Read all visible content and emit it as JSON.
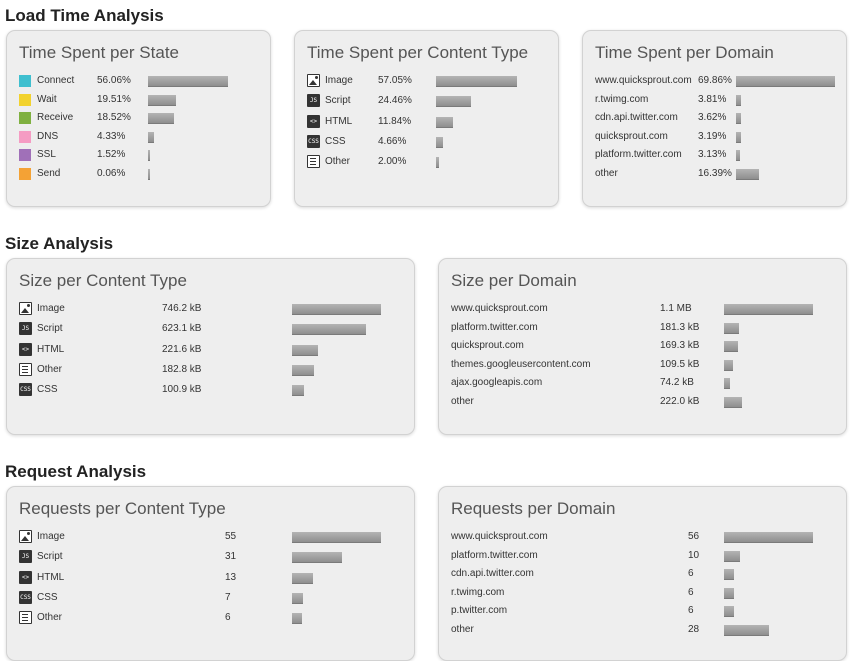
{
  "sections": {
    "load_time": "Load Time Analysis",
    "size": "Size Analysis",
    "request": "Request Analysis"
  },
  "panels": {
    "time_state": {
      "title": "Time Spent per State",
      "rows": [
        {
          "label": "Connect",
          "value": "56.06%",
          "fraction": 0.5606,
          "color": "#3fbfcf"
        },
        {
          "label": "Wait",
          "value": "19.51%",
          "fraction": 0.1951,
          "color": "#f2d22e"
        },
        {
          "label": "Receive",
          "value": "18.52%",
          "fraction": 0.1852,
          "color": "#7fb040"
        },
        {
          "label": "DNS",
          "value": "4.33%",
          "fraction": 0.0433,
          "color": "#f59cc3"
        },
        {
          "label": "SSL",
          "value": "1.52%",
          "fraction": 0.0152,
          "color": "#a070b8"
        },
        {
          "label": "Send",
          "value": "0.06%",
          "fraction": 0.0006,
          "color": "#f4a235"
        }
      ]
    },
    "time_content": {
      "title": "Time Spent per Content Type",
      "rows": [
        {
          "label": "Image",
          "value": "57.05%",
          "fraction": 0.5705,
          "icon": "image-icon"
        },
        {
          "label": "Script",
          "value": "24.46%",
          "fraction": 0.2446,
          "icon": "script-icon"
        },
        {
          "label": "HTML",
          "value": "11.84%",
          "fraction": 0.1184,
          "icon": "html-icon"
        },
        {
          "label": "CSS",
          "value": "4.66%",
          "fraction": 0.0466,
          "icon": "css-icon"
        },
        {
          "label": "Other",
          "value": "2.00%",
          "fraction": 0.02,
          "icon": "document-icon"
        }
      ]
    },
    "time_domain": {
      "title": "Time Spent per Domain",
      "rows": [
        {
          "label": "www.quicksprout.com",
          "value": "69.86%",
          "fraction": 0.6986
        },
        {
          "label": "r.twimg.com",
          "value": "3.81%",
          "fraction": 0.0381
        },
        {
          "label": "cdn.api.twitter.com",
          "value": "3.62%",
          "fraction": 0.0362
        },
        {
          "label": "quicksprout.com",
          "value": "3.19%",
          "fraction": 0.0319
        },
        {
          "label": "platform.twitter.com",
          "value": "3.13%",
          "fraction": 0.0313
        },
        {
          "label": "other",
          "value": "16.39%",
          "fraction": 0.1639
        }
      ]
    },
    "size_content": {
      "title": "Size per Content Type",
      "rows": [
        {
          "label": "Image",
          "value": "746.2 kB",
          "fraction": 1.0,
          "icon": "image-icon"
        },
        {
          "label": "Script",
          "value": "623.1 kB",
          "fraction": 0.835,
          "icon": "script-icon"
        },
        {
          "label": "HTML",
          "value": "221.6 kB",
          "fraction": 0.297,
          "icon": "html-icon"
        },
        {
          "label": "Other",
          "value": "182.8 kB",
          "fraction": 0.245,
          "icon": "document-icon"
        },
        {
          "label": "CSS",
          "value": "100.9 kB",
          "fraction": 0.135,
          "icon": "css-icon"
        }
      ]
    },
    "size_domain": {
      "title": "Size per Domain",
      "rows": [
        {
          "label": "www.quicksprout.com",
          "value": "1.1 MB",
          "fraction": 1.0
        },
        {
          "label": "platform.twitter.com",
          "value": "181.3 kB",
          "fraction": 0.165
        },
        {
          "label": "quicksprout.com",
          "value": "169.3 kB",
          "fraction": 0.154
        },
        {
          "label": "themes.googleusercontent.com",
          "value": "109.5 kB",
          "fraction": 0.1
        },
        {
          "label": "ajax.googleapis.com",
          "value": "74.2 kB",
          "fraction": 0.067
        },
        {
          "label": "other",
          "value": "222.0 kB",
          "fraction": 0.2
        }
      ]
    },
    "req_content": {
      "title": "Requests per Content Type",
      "rows": [
        {
          "label": "Image",
          "value": "55",
          "fraction": 1.0,
          "icon": "image-icon"
        },
        {
          "label": "Script",
          "value": "31",
          "fraction": 0.564,
          "icon": "script-icon"
        },
        {
          "label": "HTML",
          "value": "13",
          "fraction": 0.236,
          "icon": "html-icon"
        },
        {
          "label": "CSS",
          "value": "7",
          "fraction": 0.127,
          "icon": "css-icon"
        },
        {
          "label": "Other",
          "value": "6",
          "fraction": 0.109,
          "icon": "document-icon"
        }
      ]
    },
    "req_domain": {
      "title": "Requests per Domain",
      "rows": [
        {
          "label": "www.quicksprout.com",
          "value": "56",
          "fraction": 1.0
        },
        {
          "label": "platform.twitter.com",
          "value": "10",
          "fraction": 0.179
        },
        {
          "label": "cdn.api.twitter.com",
          "value": "6",
          "fraction": 0.107
        },
        {
          "label": "r.twimg.com",
          "value": "6",
          "fraction": 0.107
        },
        {
          "label": "p.twitter.com",
          "value": "6",
          "fraction": 0.107
        },
        {
          "label": "other",
          "value": "28",
          "fraction": 0.5
        }
      ]
    }
  },
  "icon_text": {
    "script-icon": "JS",
    "html-icon": "<>",
    "css-icon": "CSS"
  }
}
